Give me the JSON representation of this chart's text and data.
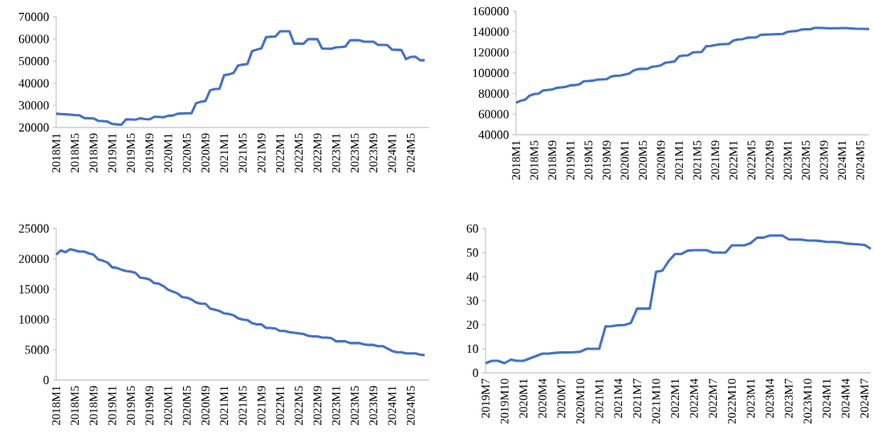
{
  "chart_data": [
    {
      "type": "line",
      "color": "#4472c4",
      "ylim": [
        20000,
        70000
      ],
      "yticks": [
        20000,
        30000,
        40000,
        50000,
        60000,
        70000
      ],
      "categories": [
        "2018M1",
        null,
        null,
        null,
        "2018M5",
        null,
        null,
        null,
        "2018M9",
        null,
        null,
        null,
        "2019M1",
        null,
        null,
        null,
        "2019M5",
        null,
        null,
        null,
        "2019M9",
        null,
        null,
        null,
        "2020M1",
        null,
        null,
        null,
        "2020M5",
        null,
        null,
        null,
        "2020M9",
        null,
        null,
        null,
        "2021M1",
        null,
        null,
        null,
        "2021M5",
        null,
        null,
        null,
        "2021M9",
        null,
        null,
        null,
        "2022M1",
        null,
        null,
        null,
        "2022M5",
        null,
        null,
        null,
        "2022M9",
        null,
        null,
        null,
        "2023M1",
        null,
        null,
        null,
        "2023M5",
        null,
        null,
        null,
        "2023M9",
        null,
        null,
        null,
        "2024M1",
        null,
        null,
        null,
        "2024M5",
        null,
        null,
        null
      ],
      "values": [
        26200,
        26100,
        26000,
        25800,
        25600,
        25500,
        24300,
        24200,
        24100,
        23000,
        22900,
        22700,
        21600,
        21400,
        21300,
        23700,
        23600,
        23500,
        24200,
        23800,
        23700,
        24800,
        24800,
        24600,
        25300,
        25400,
        26200,
        26300,
        26400,
        26400,
        31000,
        31600,
        32000,
        36800,
        37400,
        37500,
        43600,
        44000,
        44600,
        48000,
        48400,
        48700,
        54500,
        55200,
        55800,
        60800,
        61000,
        61100,
        63500,
        63500,
        63500,
        57900,
        57900,
        57800,
        59900,
        59900,
        59900,
        55700,
        55600,
        55600,
        56200,
        56300,
        56600,
        59400,
        59500,
        59400,
        58800,
        58800,
        58800,
        57300,
        57300,
        57200,
        55200,
        55100,
        55000,
        50900,
        51900,
        52000,
        50400,
        50400
      ]
    },
    {
      "type": "line",
      "color": "#4472c4",
      "ylim": [
        40000,
        160000
      ],
      "yticks": [
        40000,
        60000,
        80000,
        100000,
        120000,
        140000,
        160000
      ],
      "categories": [
        "2018M1",
        null,
        null,
        null,
        "2018M5",
        null,
        null,
        null,
        "2018M9",
        null,
        null,
        null,
        "2019M1",
        null,
        null,
        null,
        "2019M5",
        null,
        null,
        null,
        "2019M9",
        null,
        null,
        null,
        "2020M1",
        null,
        null,
        null,
        "2020M5",
        null,
        null,
        null,
        "2020M9",
        null,
        null,
        null,
        "2021M1",
        null,
        null,
        null,
        "2021M5",
        null,
        null,
        null,
        "2021M9",
        null,
        null,
        null,
        "2022M1",
        null,
        null,
        null,
        "2022M5",
        null,
        null,
        null,
        "2022M9",
        null,
        null,
        null,
        "2023M1",
        null,
        null,
        null,
        "2023M5",
        null,
        null,
        null,
        "2023M9",
        null,
        null,
        null,
        "2024M1",
        null,
        null,
        null,
        "2024M5",
        null,
        null
      ],
      "values": [
        71000,
        73000,
        74000,
        78000,
        79500,
        80000,
        83000,
        83500,
        84000,
        85500,
        86000,
        86500,
        88000,
        88200,
        89000,
        92000,
        92200,
        92500,
        93500,
        93800,
        94000,
        96500,
        97200,
        97500,
        98500,
        99500,
        102500,
        103800,
        104000,
        104000,
        106000,
        106500,
        107500,
        110000,
        110500,
        111200,
        116200,
        117000,
        117200,
        119800,
        120300,
        120500,
        126000,
        126300,
        127000,
        127800,
        128000,
        128200,
        131500,
        132500,
        132800,
        134200,
        134500,
        134500,
        137000,
        137300,
        137400,
        137600,
        137800,
        138000,
        140000,
        140500,
        140800,
        142200,
        142500,
        142500,
        143800,
        143800,
        143700,
        143500,
        143400,
        143500,
        143600,
        143600,
        143300,
        143000,
        142900,
        142800,
        142700
      ]
    },
    {
      "type": "line",
      "color": "#4472c4",
      "ylim": [
        0,
        25000
      ],
      "yticks": [
        0,
        5000,
        10000,
        15000,
        20000,
        25000
      ],
      "categories": [
        "2018M1",
        null,
        null,
        null,
        "2018M5",
        null,
        null,
        null,
        "2018M9",
        null,
        null,
        null,
        "2019M1",
        null,
        null,
        null,
        "2019M5",
        null,
        null,
        null,
        "2019M9",
        null,
        null,
        null,
        "2020M1",
        null,
        null,
        null,
        "2020M5",
        null,
        null,
        null,
        "2020M9",
        null,
        null,
        null,
        "2021M1",
        null,
        null,
        null,
        "2021M5",
        null,
        null,
        null,
        "2021M9",
        null,
        null,
        null,
        "2022M1",
        null,
        null,
        null,
        "2022M5",
        null,
        null,
        null,
        "2022M9",
        null,
        null,
        null,
        "2023M1",
        null,
        null,
        null,
        "2023M5",
        null,
        null,
        null,
        "2023M9",
        null,
        null,
        null,
        "2024M1",
        null,
        null,
        null,
        "2024M5",
        null,
        null,
        null
      ],
      "values": [
        20700,
        21400,
        21100,
        21600,
        21400,
        21200,
        21200,
        20900,
        20700,
        19900,
        19700,
        19400,
        18600,
        18500,
        18200,
        18000,
        17900,
        17700,
        16900,
        16800,
        16600,
        16000,
        15900,
        15500,
        14900,
        14600,
        14300,
        13700,
        13600,
        13300,
        12800,
        12600,
        12600,
        11800,
        11600,
        11400,
        11000,
        10900,
        10700,
        10200,
        10000,
        9900,
        9400,
        9200,
        9200,
        8600,
        8600,
        8500,
        8100,
        8100,
        7900,
        7800,
        7700,
        7600,
        7300,
        7200,
        7200,
        7000,
        7000,
        6900,
        6400,
        6400,
        6400,
        6100,
        6100,
        6100,
        5900,
        5800,
        5800,
        5600,
        5600,
        5200,
        4800,
        4600,
        4600,
        4400,
        4400,
        4400,
        4200,
        4100
      ]
    },
    {
      "type": "line",
      "color": "#4472c4",
      "ylim": [
        0,
        60
      ],
      "yticks": [
        0,
        10,
        20,
        30,
        40,
        50,
        60
      ],
      "categories": [
        "2019M7",
        null,
        null,
        "2019M10",
        null,
        null,
        "2020M1",
        null,
        null,
        "2020M4",
        null,
        null,
        "2020M7",
        null,
        null,
        "2020M10",
        null,
        null,
        "2021M1",
        null,
        null,
        "2021M4",
        null,
        null,
        "2021M7",
        null,
        null,
        "2021M10",
        null,
        null,
        "2022M1",
        null,
        null,
        "2022M4",
        null,
        null,
        "2022M7",
        null,
        null,
        "2022M10",
        null,
        null,
        "2023M1",
        null,
        null,
        "2023M4",
        null,
        null,
        "2023M7",
        null,
        null,
        "2023M10",
        null,
        null,
        "2024M1",
        null,
        null,
        "2024M4",
        null,
        null,
        "2024M7",
        null
      ],
      "values": [
        4,
        5,
        5,
        4,
        5.5,
        5,
        5,
        6,
        7,
        8,
        8,
        8.3,
        8.5,
        8.5,
        8.6,
        8.8,
        10,
        10,
        10,
        19.3,
        19.4,
        19.8,
        19.9,
        20.7,
        26.7,
        26.7,
        26.7,
        42,
        42.5,
        46.5,
        49.4,
        49.4,
        50.8,
        51,
        51,
        51,
        50,
        50,
        50,
        53,
        53,
        53,
        54,
        56.2,
        56.2,
        57.1,
        57.1,
        57.1,
        55.5,
        55.4,
        55.4,
        55,
        55,
        54.8,
        54.4,
        54.4,
        54.3,
        53.8,
        53.6,
        53.4,
        53.2,
        51.6
      ]
    }
  ]
}
